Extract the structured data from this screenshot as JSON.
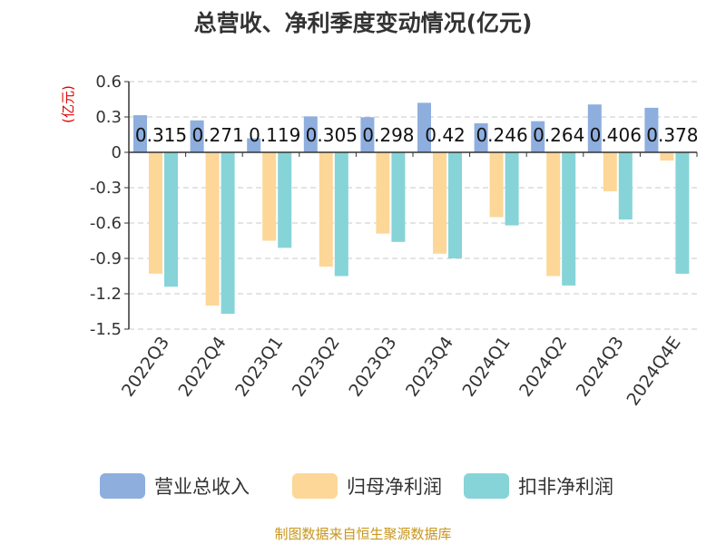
{
  "chart_data": {
    "type": "bar",
    "title": "总营收、净利季度变动情况(亿元)",
    "ylabel": "(亿元)",
    "ylim": [
      -1.5,
      0.6
    ],
    "yticks": [
      0.6,
      0.3,
      0,
      -0.3,
      -0.6,
      -0.9,
      -1.2,
      -1.5
    ],
    "ytick_labels": [
      "0.6",
      "0.3",
      "0",
      "-0.3",
      "-0.6",
      "-0.9",
      "-1.2",
      "-1.5"
    ],
    "grid": true,
    "legend_position": "bottom",
    "categories": [
      "2022Q3",
      "2022Q4",
      "2023Q1",
      "2023Q2",
      "2023Q3",
      "2023Q4",
      "2024Q1",
      "2024Q2",
      "2024Q3",
      "2024Q4E"
    ],
    "series": [
      {
        "name": "营业总收入",
        "color": "#8eaede",
        "values": [
          0.315,
          0.271,
          0.119,
          0.305,
          0.298,
          0.42,
          0.246,
          0.264,
          0.406,
          0.378
        ]
      },
      {
        "name": "归母净利润",
        "color": "#fdd798",
        "values": [
          -1.03,
          -1.3,
          -0.75,
          -0.97,
          -0.69,
          -0.86,
          -0.55,
          -1.05,
          -0.33,
          -0.07
        ]
      },
      {
        "name": "扣非净利润",
        "color": "#86d4d8",
        "values": [
          -1.14,
          -1.37,
          -0.81,
          -1.05,
          -0.76,
          -0.9,
          -0.62,
          -1.13,
          -0.57,
          -1.03
        ]
      }
    ],
    "data_labels": [
      "0.315",
      "0.271",
      "0.119",
      "0.305",
      "0.298",
      "0.42",
      "0.246",
      "0.264",
      "0.406",
      "0.378"
    ]
  },
  "source_note": "制图数据来自恒生聚源数据库"
}
